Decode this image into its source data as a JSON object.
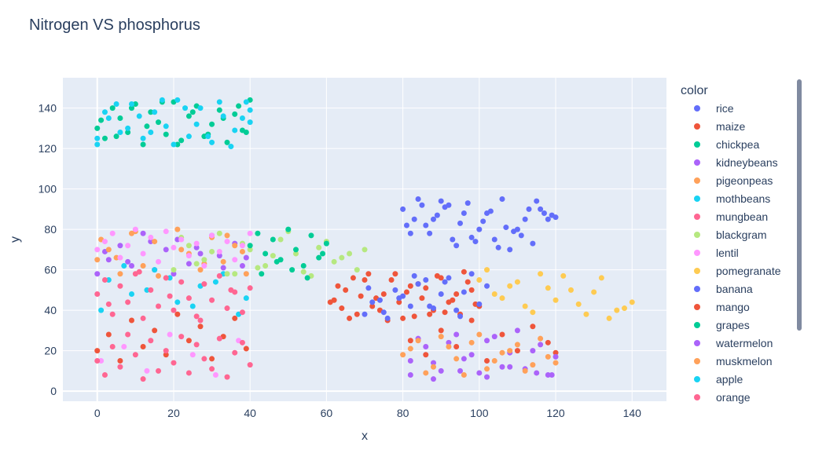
{
  "chart_data": {
    "type": "scatter",
    "title": "Nitrogen VS phosphorus",
    "xlabel": "x",
    "ylabel": "y",
    "xlim": [
      -9,
      149
    ],
    "ylim": [
      -5,
      155
    ],
    "x_ticks": [
      0,
      20,
      40,
      60,
      80,
      100,
      120,
      140
    ],
    "y_ticks": [
      0,
      20,
      40,
      60,
      80,
      100,
      120,
      140
    ],
    "grid": true,
    "legend_title": "color",
    "legend_position": "right",
    "series": [
      {
        "name": "rice",
        "color": "#636efa",
        "x": [
          80,
          84,
          88,
          92,
          96,
          100,
          104,
          108,
          112,
          116,
          120,
          82,
          86,
          90,
          94,
          98,
          102,
          106,
          110,
          114,
          118,
          81,
          85,
          89,
          93,
          97,
          101,
          105,
          109,
          113,
          117,
          83,
          87,
          91,
          95,
          99,
          103,
          107,
          111,
          115,
          119
        ],
        "y": [
          90,
          95,
          85,
          92,
          88,
          80,
          75,
          70,
          85,
          90,
          86,
          78,
          82,
          94,
          72,
          76,
          88,
          95,
          80,
          73,
          85,
          82,
          92,
          87,
          75,
          93,
          84,
          71,
          79,
          90,
          88,
          85,
          78,
          91,
          83,
          74,
          89,
          81,
          77,
          94,
          87
        ]
      },
      {
        "name": "maize",
        "color": "#ef553b",
        "x": [
          62,
          65,
          68,
          70,
          72,
          75,
          78,
          80,
          82,
          85,
          88,
          90,
          92,
          95,
          98,
          100,
          63,
          66,
          69,
          71,
          74,
          77,
          79,
          83,
          86,
          89,
          91,
          94,
          97,
          99,
          64,
          67,
          73,
          76,
          81,
          84,
          87,
          93,
          96,
          61
        ],
        "y": [
          45,
          50,
          38,
          55,
          42,
          48,
          58,
          36,
          52,
          46,
          40,
          56,
          44,
          38,
          50,
          42,
          52,
          36,
          47,
          58,
          40,
          55,
          44,
          37,
          51,
          57,
          39,
          48,
          54,
          43,
          41,
          56,
          46,
          35,
          49,
          53,
          38,
          45,
          59,
          44
        ]
      },
      {
        "name": "chickpea",
        "color": "#00cc96",
        "x": [
          0,
          2,
          4,
          6,
          8,
          10,
          12,
          14,
          16,
          18,
          20,
          22,
          24,
          26,
          28,
          30,
          32,
          34,
          36,
          38,
          40,
          1,
          5,
          9,
          13,
          17,
          21,
          25,
          29,
          33,
          37,
          39
        ],
        "y": [
          130,
          125,
          140,
          135,
          128,
          142,
          122,
          138,
          133,
          127,
          143,
          124,
          136,
          141,
          126,
          132,
          139,
          123,
          137,
          129,
          144,
          134,
          126,
          140,
          131,
          143,
          122,
          138,
          127,
          135,
          141,
          128
        ]
      },
      {
        "name": "kidneybeans",
        "color": "#ab63fa",
        "x": [
          0,
          3,
          6,
          9,
          12,
          15,
          18,
          21,
          24,
          27,
          30,
          33,
          36,
          39,
          2,
          8,
          14,
          20,
          26,
          32,
          38,
          82,
          88,
          95,
          102,
          108,
          115,
          119
        ],
        "y": [
          58,
          65,
          72,
          62,
          78,
          60,
          70,
          75,
          63,
          68,
          77,
          61,
          73,
          66,
          69,
          64,
          74,
          58,
          71,
          67,
          62,
          8,
          6,
          10,
          7,
          12,
          9,
          8
        ]
      },
      {
        "name": "pigeonpeas",
        "color": "#ffa15a",
        "x": [
          0,
          3,
          6,
          9,
          12,
          15,
          18,
          21,
          24,
          27,
          30,
          33,
          36,
          39,
          1,
          5,
          10,
          16,
          22,
          28,
          34,
          38
        ],
        "y": [
          65,
          70,
          58,
          78,
          62,
          74,
          56,
          80,
          68,
          60,
          76,
          64,
          72,
          58,
          75,
          66,
          79,
          57,
          70,
          63,
          77,
          69
        ]
      },
      {
        "name": "mothbeans",
        "color": "#19d3f3",
        "x": [
          0,
          2,
          5,
          8,
          11,
          14,
          17,
          20,
          23,
          26,
          29,
          32,
          35,
          38,
          40,
          3,
          9,
          15,
          21,
          27,
          33,
          39,
          1,
          7,
          13,
          19,
          25,
          31,
          37
        ],
        "y": [
          125,
          138,
          142,
          130,
          136,
          128,
          144,
          122,
          140,
          132,
          126,
          143,
          121,
          135,
          139,
          55,
          48,
          60,
          44,
          52,
          58,
          46,
          40,
          62,
          50,
          56,
          42,
          54,
          38
        ]
      },
      {
        "name": "mungbean",
        "color": "#ff6692",
        "x": [
          0,
          2,
          4,
          6,
          8,
          10,
          12,
          14,
          16,
          18,
          20,
          22,
          24,
          26,
          28,
          30,
          32,
          34,
          36,
          38,
          40,
          3,
          11,
          19,
          27,
          35
        ],
        "y": [
          48,
          55,
          38,
          52,
          44,
          58,
          36,
          50,
          42,
          56,
          40,
          54,
          46,
          37,
          53,
          45,
          57,
          41,
          49,
          39,
          51,
          43,
          59,
          47,
          35,
          50
        ]
      },
      {
        "name": "blackgram",
        "color": "#b6e880",
        "x": [
          20,
          24,
          28,
          32,
          36,
          40,
          44,
          48,
          52,
          56,
          60,
          64,
          68,
          70,
          22,
          26,
          30,
          34,
          38,
          42,
          46,
          50,
          54,
          58,
          62,
          66
        ],
        "y": [
          60,
          72,
          65,
          78,
          58,
          70,
          62,
          75,
          68,
          57,
          74,
          66,
          60,
          70,
          76,
          63,
          69,
          58,
          73,
          61,
          67,
          79,
          59,
          71,
          64,
          68
        ]
      },
      {
        "name": "lentil",
        "color": "#ff97ff",
        "x": [
          0,
          2,
          4,
          6,
          8,
          10,
          12,
          14,
          16,
          18,
          20,
          22,
          24,
          26,
          28,
          30,
          32,
          34,
          36,
          38,
          40,
          1,
          7,
          13,
          19,
          25,
          31,
          37
        ],
        "y": [
          70,
          74,
          78,
          66,
          72,
          80,
          68,
          76,
          64,
          79,
          71,
          75,
          67,
          73,
          62,
          77,
          69,
          74,
          65,
          72,
          78,
          15,
          22,
          10,
          28,
          18,
          8,
          25
        ]
      },
      {
        "name": "pomegranate",
        "color": "#fecb52",
        "x": [
          100,
          104,
          108,
          112,
          116,
          120,
          124,
          128,
          132,
          136,
          140,
          102,
          106,
          110,
          114,
          118,
          122,
          126,
          130,
          134,
          138
        ],
        "y": [
          55,
          48,
          52,
          42,
          58,
          45,
          50,
          38,
          56,
          40,
          44,
          60,
          46,
          54,
          39,
          51,
          57,
          43,
          49,
          36,
          41
        ]
      },
      {
        "name": "banana",
        "color": "#636efa",
        "x": [
          70,
          74,
          78,
          82,
          86,
          90,
          94,
          98,
          102,
          72,
          76,
          80,
          84,
          88,
          92,
          96,
          100,
          71,
          75,
          79,
          83,
          87,
          91,
          95
        ],
        "y": [
          38,
          45,
          50,
          42,
          55,
          48,
          40,
          58,
          52,
          44,
          36,
          47,
          53,
          41,
          56,
          49,
          43,
          51,
          39,
          46,
          57,
          42,
          54,
          37
        ]
      },
      {
        "name": "mango",
        "color": "#ef553b",
        "x": [
          0,
          3,
          6,
          9,
          12,
          15,
          18,
          21,
          24,
          27,
          30,
          33,
          36,
          39,
          82,
          86,
          90,
          94,
          98,
          102,
          106,
          110,
          114,
          118,
          120
        ],
        "y": [
          20,
          28,
          15,
          35,
          22,
          30,
          18,
          38,
          25,
          32,
          16,
          27,
          36,
          21,
          25,
          18,
          30,
          22,
          35,
          15,
          28,
          20,
          32,
          24,
          19
        ]
      },
      {
        "name": "grapes",
        "color": "#00cc96",
        "x": [
          40,
          42,
          44,
          46,
          48,
          50,
          52,
          54,
          56,
          58,
          60,
          43,
          47,
          51,
          55,
          59
        ],
        "y": [
          72,
          78,
          68,
          75,
          65,
          80,
          70,
          62,
          77,
          66,
          73,
          58,
          64,
          60,
          56,
          68
        ]
      },
      {
        "name": "watermelon",
        "color": "#ab63fa",
        "x": [
          82,
          86,
          90,
          94,
          98,
          102,
          106,
          110,
          114,
          118,
          84,
          88,
          92,
          96,
          100,
          104,
          108,
          112,
          116,
          120
        ],
        "y": [
          15,
          22,
          10,
          28,
          18,
          25,
          12,
          30,
          20,
          8,
          26,
          14,
          24,
          16,
          9,
          27,
          19,
          11,
          23,
          17
        ]
      },
      {
        "name": "muskmelon",
        "color": "#ffa15a",
        "x": [
          80,
          84,
          88,
          92,
          96,
          100,
          104,
          108,
          112,
          116,
          120,
          82,
          86,
          90,
          94,
          98,
          102,
          106,
          110,
          114,
          118
        ],
        "y": [
          18,
          25,
          12,
          22,
          8,
          28,
          15,
          20,
          10,
          26,
          14,
          21,
          9,
          27,
          16,
          24,
          11,
          19,
          23,
          13,
          17
        ]
      },
      {
        "name": "apple",
        "color": "#19d3f3",
        "x": [
          0,
          3,
          6,
          9,
          12,
          15,
          18,
          21,
          24,
          27,
          30,
          33,
          36,
          39,
          40
        ],
        "y": [
          122,
          135,
          128,
          142,
          125,
          138,
          131,
          144,
          126,
          140,
          123,
          136,
          129,
          143,
          133
        ]
      },
      {
        "name": "orange",
        "color": "#ff6692",
        "x": [
          0,
          2,
          4,
          6,
          8,
          10,
          12,
          14,
          16,
          18,
          20,
          22,
          24,
          26,
          28,
          30,
          32,
          34,
          36,
          38,
          40
        ],
        "y": [
          15,
          8,
          22,
          12,
          28,
          18,
          6,
          25,
          10,
          20,
          14,
          27,
          9,
          23,
          16,
          11,
          26,
          7,
          19,
          24,
          13
        ]
      }
    ]
  }
}
